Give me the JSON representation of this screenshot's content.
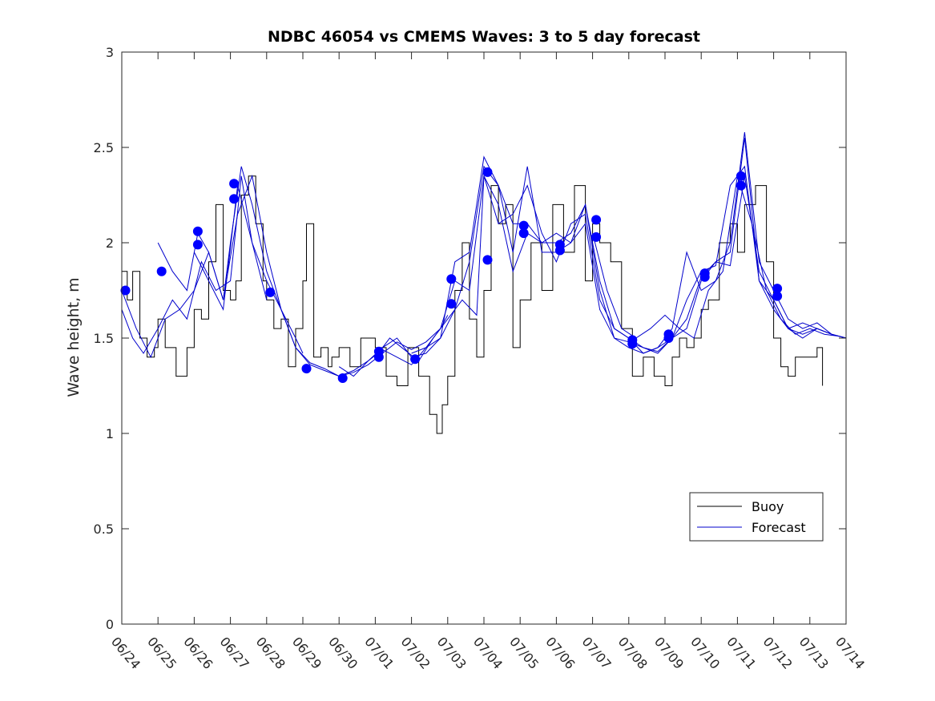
{
  "chart_data": {
    "type": "line",
    "title": "NDBC 46054 vs CMEMS Waves: 3 to 5 day forecast",
    "xlabel": "",
    "ylabel": "Wave height, m",
    "xlim": [
      "06/24",
      "07/14"
    ],
    "ylim": [
      0,
      3
    ],
    "yticks": [
      "0",
      "0.5",
      "1",
      "1.5",
      "2",
      "2.5",
      "3"
    ],
    "xticks": [
      "06/24",
      "06/25",
      "06/26",
      "06/27",
      "06/28",
      "06/29",
      "06/30",
      "07/01",
      "07/02",
      "07/03",
      "07/04",
      "07/05",
      "07/06",
      "07/07",
      "07/08",
      "07/09",
      "07/10",
      "07/11",
      "07/12",
      "07/13",
      "07/14"
    ],
    "grid": false,
    "legend": {
      "position": "bottom-right",
      "entries": [
        {
          "name": "Buoy",
          "color": "#000000"
        },
        {
          "name": "Forecast",
          "color": "#0000cc"
        }
      ]
    },
    "colors": {
      "buoy": "#000000",
      "forecast": "#0000cc",
      "marker": "#0000ff"
    },
    "buoy": {
      "name": "Buoy",
      "x": [
        0,
        0.15,
        0.3,
        0.5,
        0.7,
        0.9,
        1.0,
        1.2,
        1.5,
        1.8,
        2.0,
        2.2,
        2.4,
        2.6,
        2.8,
        3.0,
        3.15,
        3.3,
        3.5,
        3.7,
        3.9,
        4.0,
        4.2,
        4.4,
        4.6,
        4.8,
        5.0,
        5.1,
        5.3,
        5.5,
        5.7,
        5.8,
        6.0,
        6.3,
        6.6,
        7.0,
        7.3,
        7.6,
        7.9,
        8.2,
        8.5,
        8.7,
        8.85,
        9.0,
        9.2,
        9.4,
        9.6,
        9.8,
        10.0,
        10.2,
        10.4,
        10.6,
        10.8,
        11.0,
        11.3,
        11.6,
        11.9,
        12.2,
        12.5,
        12.8,
        13.0,
        13.2,
        13.5,
        13.8,
        14.1,
        14.4,
        14.7,
        15.0,
        15.2,
        15.4,
        15.6,
        15.8,
        16.0,
        16.2,
        16.5,
        16.8,
        17.0,
        17.2,
        17.5,
        17.8,
        18.0,
        18.2,
        18.4,
        18.6,
        18.9,
        19.2,
        19.35
      ],
      "values": [
        1.85,
        1.7,
        1.85,
        1.5,
        1.4,
        1.45,
        1.6,
        1.45,
        1.3,
        1.45,
        1.65,
        1.6,
        1.9,
        2.2,
        1.75,
        1.7,
        1.8,
        2.25,
        2.35,
        2.1,
        1.8,
        1.7,
        1.55,
        1.6,
        1.35,
        1.55,
        1.8,
        2.1,
        1.4,
        1.45,
        1.35,
        1.4,
        1.45,
        1.35,
        1.5,
        1.45,
        1.3,
        1.25,
        1.45,
        1.3,
        1.1,
        1.0,
        1.15,
        1.3,
        1.75,
        2.0,
        1.6,
        1.4,
        1.75,
        2.3,
        2.1,
        2.2,
        1.45,
        1.7,
        2.0,
        1.75,
        2.2,
        1.95,
        2.3,
        1.8,
        2.1,
        2.0,
        1.9,
        1.55,
        1.3,
        1.4,
        1.3,
        1.25,
        1.4,
        1.5,
        1.45,
        1.5,
        1.65,
        1.7,
        2.0,
        2.1,
        1.95,
        2.2,
        2.3,
        1.9,
        1.5,
        1.35,
        1.3,
        1.4,
        1.4,
        1.45,
        1.25
      ]
    },
    "forecast_series": [
      {
        "x": [
          0,
          0.4,
          0.8,
          1.2,
          1.6,
          2.0,
          2.4,
          2.8,
          3.2,
          3.6,
          4.0,
          4.4,
          4.8,
          5.0
        ],
        "values": [
          1.75,
          1.55,
          1.4,
          1.6,
          1.65,
          1.75,
          1.95,
          1.7,
          2.15,
          2.35,
          1.95,
          1.65,
          1.5,
          1.42
        ]
      },
      {
        "x": [
          1.0,
          1.4,
          1.8,
          2.1,
          2.4,
          2.8,
          3.0,
          3.3,
          3.6,
          4.0,
          4.4,
          4.8,
          5.2,
          5.6,
          6.0,
          6.4,
          6.8,
          7.2,
          7.6,
          8.0,
          8.4,
          8.8,
          9.0
        ],
        "values": [
          2.0,
          1.85,
          1.75,
          2.05,
          1.95,
          1.7,
          2.0,
          2.4,
          2.2,
          1.85,
          1.65,
          1.45,
          1.37,
          1.34,
          1.3,
          1.32,
          1.36,
          1.42,
          1.48,
          1.44,
          1.48,
          1.55,
          1.62
        ]
      },
      {
        "x": [
          0,
          0.3,
          0.6,
          1.0,
          1.4,
          1.8,
          2.2,
          2.6,
          3.0,
          3.3,
          3.6,
          4.0
        ],
        "values": [
          1.65,
          1.5,
          1.42,
          1.55,
          1.7,
          1.6,
          1.9,
          1.75,
          1.8,
          2.35,
          2.0,
          1.7
        ]
      },
      {
        "x": [
          2.0,
          2.4,
          2.8,
          3.2,
          3.6,
          4.0,
          4.4,
          4.8,
          5.2,
          5.6,
          6.0,
          6.4,
          6.8,
          7.2,
          7.6,
          8.0,
          8.4,
          8.8,
          9.2,
          9.6,
          10.0,
          10.4,
          10.8,
          11.2,
          11.6,
          12.0,
          12.4,
          12.8,
          13.2,
          13.6,
          14.0,
          14.4,
          14.8,
          15.2,
          15.6,
          16.0,
          16.4,
          16.8,
          17.2,
          17.6,
          18.0,
          18.4,
          18.8,
          19.2,
          19.6,
          20.0
        ],
        "values": [
          1.95,
          1.8,
          1.65,
          2.3,
          2.0,
          1.8,
          1.65,
          1.45,
          1.36,
          1.33,
          1.3,
          1.33,
          1.38,
          1.44,
          1.4,
          1.36,
          1.45,
          1.55,
          1.8,
          1.75,
          2.35,
          2.2,
          1.85,
          2.05,
          2.0,
          2.05,
          2.0,
          2.1,
          1.65,
          1.5,
          1.45,
          1.42,
          1.45,
          1.5,
          1.6,
          1.82,
          1.9,
          1.88,
          2.35,
          1.85,
          1.7,
          1.55,
          1.52,
          1.55,
          1.52,
          1.5
        ]
      },
      {
        "x": [
          6.0,
          6.4,
          6.8,
          7.2,
          7.6,
          8.0,
          8.4,
          8.8,
          9.2,
          9.6,
          10.0,
          10.4,
          10.8,
          11.2,
          11.6,
          12.0,
          12.4,
          12.8,
          13.2,
          13.6,
          14.0,
          14.4,
          14.8,
          15.2,
          15.6,
          16.0,
          16.4,
          16.8,
          17.2,
          17.6,
          18.0,
          18.4,
          18.8,
          19.2,
          19.6,
          20.0
        ],
        "values": [
          1.35,
          1.3,
          1.38,
          1.45,
          1.5,
          1.4,
          1.42,
          1.5,
          1.9,
          1.95,
          2.45,
          2.3,
          1.95,
          2.4,
          1.95,
          1.95,
          2.0,
          2.2,
          1.8,
          1.55,
          1.5,
          1.45,
          1.42,
          1.5,
          1.7,
          1.85,
          1.88,
          2.3,
          2.4,
          1.8,
          1.65,
          1.55,
          1.58,
          1.55,
          1.52,
          1.5
        ]
      },
      {
        "x": [
          7.0,
          7.4,
          7.8,
          8.2,
          8.6,
          9.0,
          9.4,
          9.8,
          10.0,
          10.4,
          10.8,
          11.2,
          11.6,
          12.0,
          12.4,
          12.8,
          13.2,
          13.6,
          14.0,
          14.4,
          14.8,
          15.2,
          15.6,
          16.0,
          16.4,
          16.8,
          17.2,
          17.6,
          18.0,
          18.4,
          18.8,
          19.2,
          19.6,
          20.0
        ],
        "values": [
          1.4,
          1.5,
          1.44,
          1.38,
          1.5,
          1.6,
          1.7,
          1.62,
          2.35,
          2.1,
          2.15,
          2.3,
          2.05,
          1.9,
          2.1,
          2.15,
          1.7,
          1.55,
          1.5,
          1.42,
          1.45,
          1.55,
          1.95,
          1.75,
          1.8,
          2.0,
          2.58,
          1.9,
          1.75,
          1.6,
          1.55,
          1.58,
          1.52,
          1.5
        ]
      },
      {
        "x": [
          8.0,
          8.4,
          8.8,
          9.2,
          9.6,
          10.0,
          10.4,
          10.8,
          11.2,
          11.6,
          12.0,
          12.4,
          12.8,
          13.2,
          13.6,
          14.0,
          14.4,
          14.8,
          15.2,
          15.6,
          16.0,
          16.4,
          16.8,
          17.2,
          17.6,
          18.0,
          18.4,
          18.8,
          19.2,
          19.6,
          20.0
        ],
        "values": [
          1.42,
          1.45,
          1.5,
          1.65,
          1.9,
          2.4,
          2.3,
          2.1,
          2.1,
          2.0,
          2.0,
          2.05,
          2.2,
          1.75,
          1.5,
          1.48,
          1.45,
          1.43,
          1.5,
          1.55,
          1.8,
          1.9,
          1.95,
          2.55,
          1.8,
          1.7,
          1.55,
          1.5,
          1.55,
          1.52,
          1.5
        ]
      },
      {
        "x": [
          13.0,
          13.4,
          13.8,
          14.2,
          14.6,
          15.0,
          15.4,
          15.8,
          16.2,
          16.6,
          17.0,
          17.4,
          17.8,
          18.2,
          18.6,
          19.0,
          19.4,
          19.8,
          20.0
        ],
        "values": [
          2.05,
          1.75,
          1.55,
          1.5,
          1.55,
          1.62,
          1.55,
          1.5,
          1.75,
          1.85,
          2.35,
          2.1,
          1.75,
          1.6,
          1.52,
          1.55,
          1.52,
          1.51,
          1.5
        ]
      }
    ],
    "markers": [
      {
        "x": 0.1,
        "y": 1.75
      },
      {
        "x": 1.1,
        "y": 1.85
      },
      {
        "x": 2.1,
        "y": 2.06
      },
      {
        "x": 2.1,
        "y": 1.99
      },
      {
        "x": 3.1,
        "y": 2.31
      },
      {
        "x": 3.1,
        "y": 2.23
      },
      {
        "x": 4.1,
        "y": 1.74
      },
      {
        "x": 5.1,
        "y": 1.34
      },
      {
        "x": 6.1,
        "y": 1.29
      },
      {
        "x": 7.1,
        "y": 1.43
      },
      {
        "x": 7.1,
        "y": 1.4
      },
      {
        "x": 8.1,
        "y": 1.39
      },
      {
        "x": 9.1,
        "y": 1.81
      },
      {
        "x": 9.1,
        "y": 1.68
      },
      {
        "x": 10.1,
        "y": 2.37
      },
      {
        "x": 10.1,
        "y": 1.91
      },
      {
        "x": 11.1,
        "y": 2.09
      },
      {
        "x": 11.1,
        "y": 2.05
      },
      {
        "x": 12.1,
        "y": 1.99
      },
      {
        "x": 12.1,
        "y": 1.96
      },
      {
        "x": 13.1,
        "y": 2.12
      },
      {
        "x": 13.1,
        "y": 2.03
      },
      {
        "x": 14.1,
        "y": 1.49
      },
      {
        "x": 14.1,
        "y": 1.47
      },
      {
        "x": 15.1,
        "y": 1.52
      },
      {
        "x": 15.1,
        "y": 1.5
      },
      {
        "x": 16.1,
        "y": 1.84
      },
      {
        "x": 16.1,
        "y": 1.82
      },
      {
        "x": 17.1,
        "y": 2.35
      },
      {
        "x": 17.1,
        "y": 2.3
      },
      {
        "x": 18.1,
        "y": 1.76
      },
      {
        "x": 18.1,
        "y": 1.72
      }
    ]
  }
}
